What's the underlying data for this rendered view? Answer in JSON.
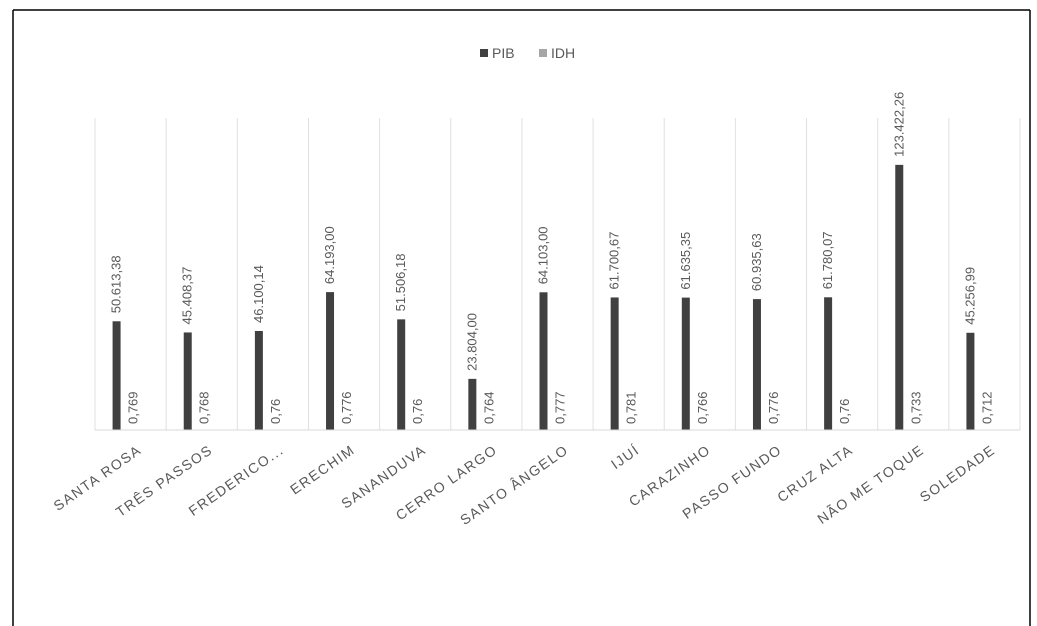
{
  "chart_data": {
    "type": "bar",
    "categories": [
      "SANTA ROSA",
      "TRÊS PASSOS",
      "FREDERICO...",
      "ERECHIM",
      "SANANDUVA",
      "CERRO LARGO",
      "SANTO ÂNGELO",
      "IJUÍ",
      "CARAZINHO",
      "PASSO FUNDO",
      "CRUZ ALTA",
      "NÃO ME TOQUE",
      "SOLEDADE"
    ],
    "series": [
      {
        "name": "PIB",
        "color": "#404040",
        "values": [
          50613.38,
          45408.37,
          46100.14,
          64193.0,
          51506.18,
          23804.0,
          64103.0,
          61700.67,
          61635.35,
          60935.63,
          61780.07,
          123422.26,
          45256.99
        ],
        "labels": [
          "50.613,38",
          "45.408,37",
          "46.100,14",
          "64.193,00",
          "51.506,18",
          "23.804,00",
          "64.103,00",
          "61.700,67",
          "61.635,35",
          "60.935,63",
          "61.780,07",
          "123.422,26",
          "45.256,99"
        ]
      },
      {
        "name": "IDH",
        "color": "#a6a6a6",
        "values": [
          0.769,
          0.768,
          0.76,
          0.776,
          0.76,
          0.764,
          0.777,
          0.781,
          0.766,
          0.776,
          0.76,
          0.733,
          0.712
        ],
        "labels": [
          "0,769",
          "0,768",
          "0,76",
          "0,776",
          "0,76",
          "0,764",
          "0,777",
          "0,781",
          "0,766",
          "0,776",
          "0,76",
          "0,733",
          "0,712"
        ]
      }
    ],
    "legend_position": "top",
    "gridlines": "vertical category separators",
    "data_labels": "rotated vertical",
    "ylim": [
      0,
      135000
    ]
  }
}
